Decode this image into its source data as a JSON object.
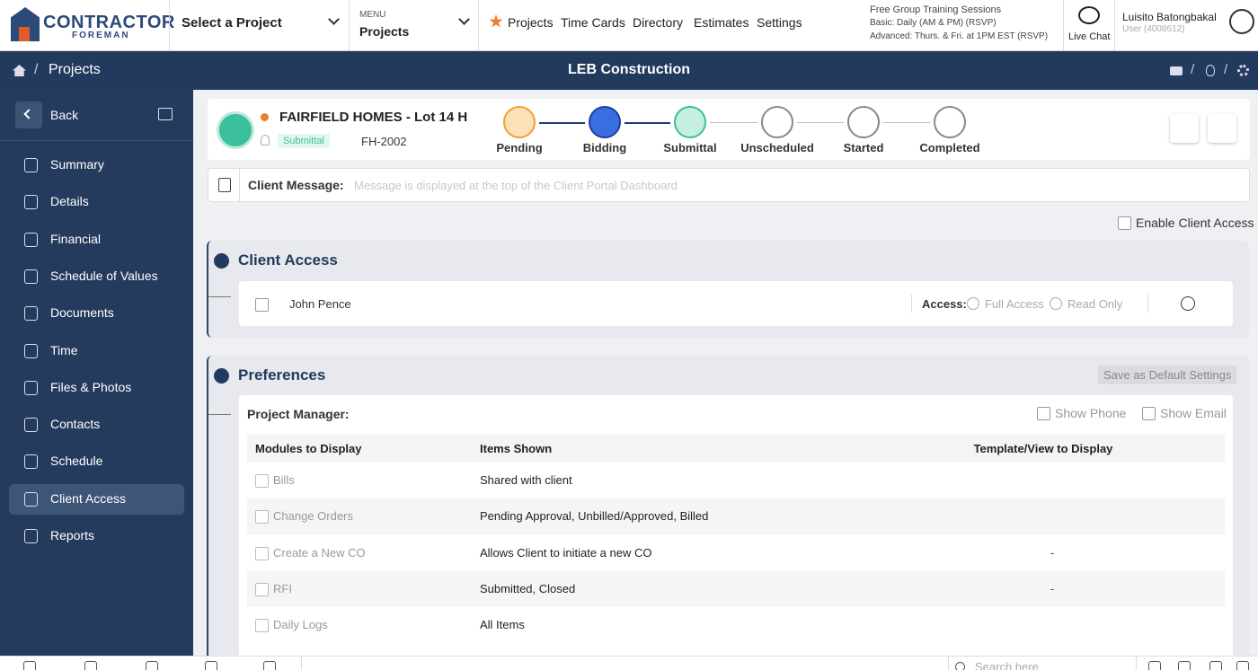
{
  "header": {
    "logo_top": "CONTRACTOR",
    "logo_bottom": "FOREMAN",
    "project_select": "Select a Project",
    "menu_label": "MENU",
    "menu_value": "Projects",
    "nav": [
      "Projects",
      "Time Cards",
      "Directory",
      "Estimates",
      "Settings"
    ],
    "training": [
      "Free Group Training Sessions",
      "Basic: Daily (AM & PM) (RSVP)",
      "Advanced: Thurs. & Fri. at 1PM EST (RSVP)"
    ],
    "live_chat": "Live Chat",
    "user_name": "Luisito Batongbakal",
    "user_id": "User (4008612)"
  },
  "breadcrumb": {
    "separator": "/",
    "page": "Projects",
    "company": "LEB Construction"
  },
  "sidebar": {
    "back": "Back",
    "items": [
      "Summary",
      "Details",
      "Financial",
      "Schedule of Values",
      "Documents",
      "Time",
      "Files & Photos",
      "Contacts",
      "Schedule",
      "Client Access",
      "Reports"
    ]
  },
  "project": {
    "name": "FAIRFIELD HOMES - Lot 14 H",
    "status": "Submittal",
    "id": "FH-2002",
    "stages": [
      "Pending",
      "Bidding",
      "Submittal",
      "Unscheduled",
      "Started",
      "Completed"
    ]
  },
  "client_message": {
    "label": "Client Message:",
    "placeholder": "Message is displayed at the top of the Client Portal Dashboard"
  },
  "enable_client_access": "Enable Client Access",
  "client_access": {
    "title": "Client Access",
    "contact": "John Pence",
    "access_label": "Access:",
    "options": [
      "Full Access",
      "Read Only"
    ]
  },
  "preferences": {
    "title": "Preferences",
    "save_default": "Save as Default Settings",
    "manager_label": "Project Manager:",
    "show_phone": "Show Phone",
    "show_email": "Show Email",
    "columns": [
      "Modules to Display",
      "Items Shown",
      "Template/View to Display"
    ],
    "rows": [
      [
        "Bills",
        "Shared with client",
        null
      ],
      [
        "Change Orders",
        "Pending Approval, Unbilled/Approved, Billed",
        null
      ],
      [
        "Create a New CO",
        "Allows Client to initiate a new CO",
        "-"
      ],
      [
        "RFI",
        "Submitted, Closed",
        "-"
      ],
      [
        "Daily Logs",
        "All Items",
        null
      ]
    ]
  },
  "footer": {
    "search": "Search here"
  }
}
